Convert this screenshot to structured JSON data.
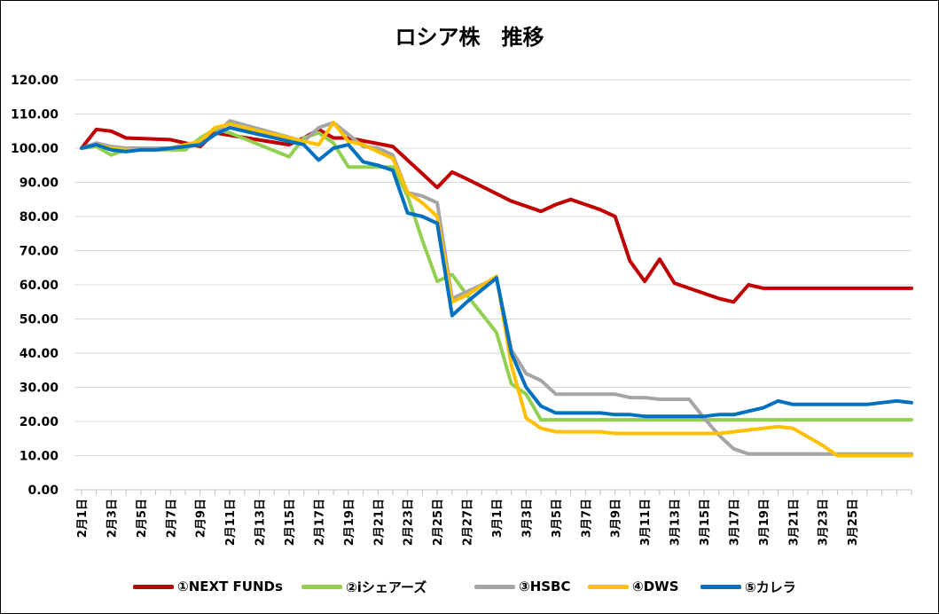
{
  "chart_data": {
    "type": "line",
    "title": "ロシア株　推移",
    "ylim": [
      0,
      120
    ],
    "y_ticks": [
      "0.00",
      "10.00",
      "20.00",
      "30.00",
      "40.00",
      "50.00",
      "60.00",
      "70.00",
      "80.00",
      "90.00",
      "100.00",
      "110.00",
      "120.00"
    ],
    "x_tick_labels": [
      "2月1日",
      "2月3日",
      "2月5日",
      "2月7日",
      "2月9日",
      "2月11日",
      "2月13日",
      "2月15日",
      "2月17日",
      "2月19日",
      "2月21日",
      "2月23日",
      "2月25日",
      "2月27日",
      "3月1日",
      "3月3日",
      "3月5日",
      "3月7日",
      "3月9日",
      "3月11日",
      "3月13日",
      "3月15日",
      "3月17日",
      "3月19日",
      "3月21日",
      "3月23日",
      "3月25日"
    ],
    "grid": true,
    "legend": "bottom",
    "series": [
      {
        "name": "①NEXT FUNDs",
        "color": "#c00000",
        "points": [
          [
            0,
            100
          ],
          [
            1,
            105.5
          ],
          [
            2,
            105
          ],
          [
            3,
            103
          ],
          [
            6,
            102.5
          ],
          [
            7,
            101.5
          ],
          [
            8,
            100.5
          ],
          [
            9,
            104.5
          ],
          [
            14,
            101
          ],
          [
            15,
            103
          ],
          [
            16,
            105.5
          ],
          [
            17,
            103
          ],
          [
            18,
            103
          ],
          [
            21,
            100.5
          ],
          [
            22,
            96.5
          ],
          [
            23,
            92.5
          ],
          [
            24,
            88.5
          ],
          [
            25,
            93
          ],
          [
            26,
            91
          ],
          [
            29,
            84.5
          ],
          [
            30,
            83
          ],
          [
            31,
            81.5
          ],
          [
            32,
            83.5
          ],
          [
            33,
            85
          ],
          [
            34,
            83.5
          ],
          [
            35,
            82
          ],
          [
            36,
            80
          ],
          [
            37,
            67
          ],
          [
            38,
            61
          ],
          [
            39,
            67.5
          ],
          [
            40,
            60.5
          ],
          [
            41,
            59
          ],
          [
            42,
            57.5
          ],
          [
            43,
            56
          ],
          [
            44,
            55
          ],
          [
            45,
            60
          ],
          [
            46,
            59
          ],
          [
            50,
            59
          ],
          [
            51,
            59
          ],
          [
            52,
            59
          ],
          [
            53,
            59
          ],
          [
            54,
            59
          ],
          [
            55,
            59
          ],
          [
            56,
            59
          ]
        ]
      },
      {
        "name": "②iシェアーズ",
        "color": "#92d050",
        "points": [
          [
            0,
            100
          ],
          [
            1,
            100.5
          ],
          [
            2,
            98
          ],
          [
            3,
            99.5
          ],
          [
            4,
            99.5
          ],
          [
            5,
            99.5
          ],
          [
            6,
            99.5
          ],
          [
            7,
            99.5
          ],
          [
            8,
            103
          ],
          [
            9,
            105.5
          ],
          [
            10,
            104.5
          ],
          [
            14,
            97.5
          ],
          [
            15,
            103
          ],
          [
            16,
            104.5
          ],
          [
            17,
            101.5
          ],
          [
            18,
            94.5
          ],
          [
            19,
            94.5
          ],
          [
            20,
            94.5
          ],
          [
            21,
            94.5
          ],
          [
            22,
            86
          ],
          [
            23,
            73
          ],
          [
            24,
            61
          ],
          [
            25,
            63
          ],
          [
            26,
            57
          ],
          [
            27,
            51.5
          ],
          [
            28,
            46
          ],
          [
            29,
            31
          ],
          [
            30,
            28
          ],
          [
            31,
            20.5
          ],
          [
            32,
            20.5
          ],
          [
            33,
            20.5
          ],
          [
            34,
            20.5
          ],
          [
            35,
            20.5
          ],
          [
            36,
            20.5
          ],
          [
            37,
            20.5
          ],
          [
            38,
            20.5
          ],
          [
            39,
            20.5
          ],
          [
            40,
            20.5
          ],
          [
            41,
            20.5
          ],
          [
            42,
            20.5
          ],
          [
            43,
            20.5
          ],
          [
            44,
            20.5
          ],
          [
            45,
            20.5
          ],
          [
            46,
            20.5
          ],
          [
            47,
            20.5
          ],
          [
            48,
            20.5
          ],
          [
            49,
            20.5
          ],
          [
            50,
            20.5
          ],
          [
            51,
            20.5
          ],
          [
            52,
            20.5
          ],
          [
            53,
            20.5
          ],
          [
            54,
            20.5
          ],
          [
            55,
            20.5
          ],
          [
            56,
            20.5
          ]
        ]
      },
      {
        "name": "③HSBC",
        "color": "#a5a5a5",
        "points": [
          [
            0,
            100
          ],
          [
            1,
            101.5
          ],
          [
            2,
            100.5
          ],
          [
            3,
            100
          ],
          [
            4,
            100
          ],
          [
            5,
            100
          ],
          [
            6,
            100
          ],
          [
            7,
            100.5
          ],
          [
            8,
            101
          ],
          [
            9,
            104
          ],
          [
            10,
            108
          ],
          [
            15,
            102
          ],
          [
            16,
            106
          ],
          [
            17,
            107.5
          ],
          [
            18,
            104
          ],
          [
            19,
            100.5
          ],
          [
            20,
            100
          ],
          [
            21,
            98
          ],
          [
            22,
            87
          ],
          [
            23,
            86
          ],
          [
            24,
            84
          ],
          [
            25,
            56
          ],
          [
            26,
            58
          ],
          [
            28,
            62
          ],
          [
            29,
            41
          ],
          [
            30,
            34
          ],
          [
            31,
            32
          ],
          [
            32,
            28
          ],
          [
            33,
            28
          ],
          [
            34,
            28
          ],
          [
            35,
            28
          ],
          [
            36,
            28
          ],
          [
            37,
            27
          ],
          [
            38,
            27
          ],
          [
            39,
            26.5
          ],
          [
            40,
            26.5
          ],
          [
            41,
            26.5
          ],
          [
            42,
            21
          ],
          [
            43,
            16
          ],
          [
            44,
            12
          ],
          [
            45,
            10.5
          ],
          [
            46,
            10.5
          ],
          [
            47,
            10.5
          ],
          [
            48,
            10.5
          ],
          [
            49,
            10.5
          ],
          [
            50,
            10.5
          ],
          [
            51,
            10.5
          ],
          [
            52,
            10.5
          ],
          [
            53,
            10.5
          ],
          [
            54,
            10.5
          ],
          [
            55,
            10.5
          ],
          [
            56,
            10.5
          ]
        ]
      },
      {
        "name": "④DWS",
        "color": "#ffc000",
        "points": [
          [
            0,
            100
          ],
          [
            1,
            101
          ],
          [
            2,
            100
          ],
          [
            3,
            99.5
          ],
          [
            4,
            99.5
          ],
          [
            5,
            99.5
          ],
          [
            6,
            100
          ],
          [
            7,
            101
          ],
          [
            8,
            102
          ],
          [
            9,
            106
          ],
          [
            10,
            107
          ],
          [
            16,
            101
          ],
          [
            17,
            107.5
          ],
          [
            18,
            102
          ],
          [
            19,
            101
          ],
          [
            20,
            99
          ],
          [
            21,
            97
          ],
          [
            22,
            87
          ],
          [
            23,
            84
          ],
          [
            24,
            80
          ],
          [
            25,
            55
          ],
          [
            26,
            57
          ],
          [
            28,
            62.5
          ],
          [
            29,
            36.5
          ],
          [
            30,
            21
          ],
          [
            31,
            18
          ],
          [
            32,
            17
          ],
          [
            33,
            17
          ],
          [
            34,
            17
          ],
          [
            35,
            17
          ],
          [
            36,
            16.5
          ],
          [
            37,
            16.5
          ],
          [
            38,
            16.5
          ],
          [
            39,
            16.5
          ],
          [
            40,
            16.5
          ],
          [
            41,
            16.5
          ],
          [
            42,
            16.5
          ],
          [
            43,
            16.5
          ],
          [
            44,
            17
          ],
          [
            45,
            17.5
          ],
          [
            46,
            18
          ],
          [
            47,
            18.5
          ],
          [
            48,
            18
          ],
          [
            50,
            13
          ],
          [
            51,
            10
          ],
          [
            52,
            10
          ],
          [
            53,
            10
          ],
          [
            54,
            10
          ],
          [
            55,
            10
          ],
          [
            56,
            10
          ]
        ]
      },
      {
        "name": "⑤カレラ",
        "color": "#0070c0",
        "points": [
          [
            0,
            100
          ],
          [
            1,
            101
          ],
          [
            2,
            99.5
          ],
          [
            3,
            99
          ],
          [
            4,
            99.5
          ],
          [
            5,
            99.5
          ],
          [
            6,
            100
          ],
          [
            7,
            100.5
          ],
          [
            8,
            101
          ],
          [
            9,
            104
          ],
          [
            10,
            106
          ],
          [
            14,
            102
          ],
          [
            15,
            101
          ],
          [
            16,
            96.5
          ],
          [
            17,
            100
          ],
          [
            18,
            101
          ],
          [
            19,
            96
          ],
          [
            20,
            95
          ],
          [
            21,
            93.5
          ],
          [
            22,
            81
          ],
          [
            23,
            80
          ],
          [
            24,
            78
          ],
          [
            25,
            51
          ],
          [
            26,
            55
          ],
          [
            28,
            62
          ],
          [
            29,
            40
          ],
          [
            30,
            30
          ],
          [
            31,
            24.5
          ],
          [
            32,
            22.5
          ],
          [
            33,
            22.5
          ],
          [
            34,
            22.5
          ],
          [
            35,
            22.5
          ],
          [
            36,
            22
          ],
          [
            37,
            22
          ],
          [
            38,
            21.5
          ],
          [
            39,
            21.5
          ],
          [
            40,
            21.5
          ],
          [
            41,
            21.5
          ],
          [
            42,
            21.5
          ],
          [
            43,
            22
          ],
          [
            44,
            22
          ],
          [
            45,
            23
          ],
          [
            46,
            24
          ],
          [
            47,
            26
          ],
          [
            48,
            25
          ],
          [
            49,
            25
          ],
          [
            50,
            25
          ],
          [
            51,
            25
          ],
          [
            52,
            25
          ],
          [
            53,
            25
          ],
          [
            54,
            25.5
          ],
          [
            55,
            26
          ],
          [
            56,
            25.5
          ]
        ]
      }
    ]
  }
}
